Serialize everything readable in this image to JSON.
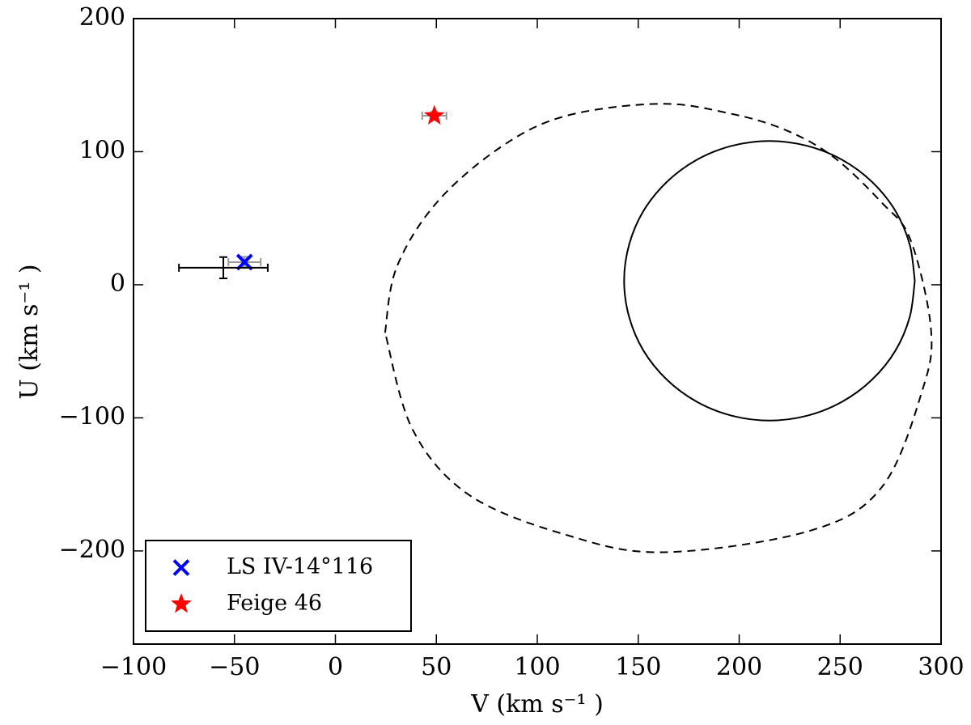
{
  "chart_data": {
    "type": "scatter",
    "xlabel": "V (km s⁻¹ )",
    "ylabel": "U (km s⁻¹ )",
    "xlim": [
      -100,
      300
    ],
    "ylim": [
      -270,
      200
    ],
    "xticks": [
      {
        "value": -100,
        "label": "−100"
      },
      {
        "value": -50,
        "label": "−50"
      },
      0,
      50,
      100,
      150,
      200,
      250,
      300
    ],
    "yticks": [
      {
        "value": -200,
        "label": "−200"
      },
      {
        "value": -100,
        "label": "−100"
      },
      0,
      100,
      200
    ],
    "legend": "lower left",
    "series": [
      {
        "name": "LS IV-14°116",
        "type": "scatter",
        "marker": "x",
        "color": "#0000ff",
        "ecolor": "#999999",
        "x": [
          -45
        ],
        "values": [
          17
        ],
        "xerr": [
          8
        ],
        "yerr": [
          4
        ]
      },
      {
        "name": "Feige 46",
        "type": "scatter",
        "marker": "star",
        "color": "#ff0000",
        "ecolor": "#999999",
        "x": [
          49
        ],
        "values": [
          127
        ],
        "xerr": [
          6
        ],
        "yerr": [
          3
        ]
      },
      {
        "type": "scatter",
        "marker": "none",
        "color": "#000000",
        "ecolor": "#000000",
        "x": [
          -55.5
        ],
        "values": [
          12.8
        ],
        "xerr": [
          22
        ],
        "yerr": [
          8
        ]
      },
      {
        "type": "line",
        "linestyle": "solid",
        "color": "#000000",
        "x": [
          287,
          284.5,
          277.4,
          265.9,
          251,
          233.6,
          215,
          196.4,
          179,
          164.1,
          152.6,
          145.5,
          143,
          145.5,
          152.6,
          164.1,
          179,
          196.4,
          215,
          233.6,
          251,
          265.9,
          277.4,
          284.5,
          287
        ],
        "values": [
          3,
          30.2,
          55.5,
          77.2,
          93.9,
          104.4,
          108,
          104.4,
          93.9,
          77.2,
          55.5,
          30.2,
          3,
          -24.2,
          -49.5,
          -71.2,
          -87.9,
          -98.4,
          -102,
          -98.4,
          -87.9,
          -71.2,
          -49.5,
          -24.2,
          3
        ]
      },
      {
        "type": "line",
        "linestyle": "dashed",
        "color": "#000000",
        "x": [
          24.6,
          30.3,
          50.3,
          82.4,
          114.4,
          160.5,
          194.6,
          222.6,
          246.7,
          270.7,
          284.8,
          295,
          290.8,
          270.7,
          234.7,
          162.5,
          114.4,
          66.3,
          38.3,
          24.6
        ],
        "values": [
          -36,
          13,
          62,
          104,
          127,
          136,
          129,
          116.5,
          96,
          61.6,
          34,
          -33,
          -79,
          -152,
          -185,
          -201,
          -188,
          -158,
          -109,
          -36
        ]
      }
    ]
  }
}
